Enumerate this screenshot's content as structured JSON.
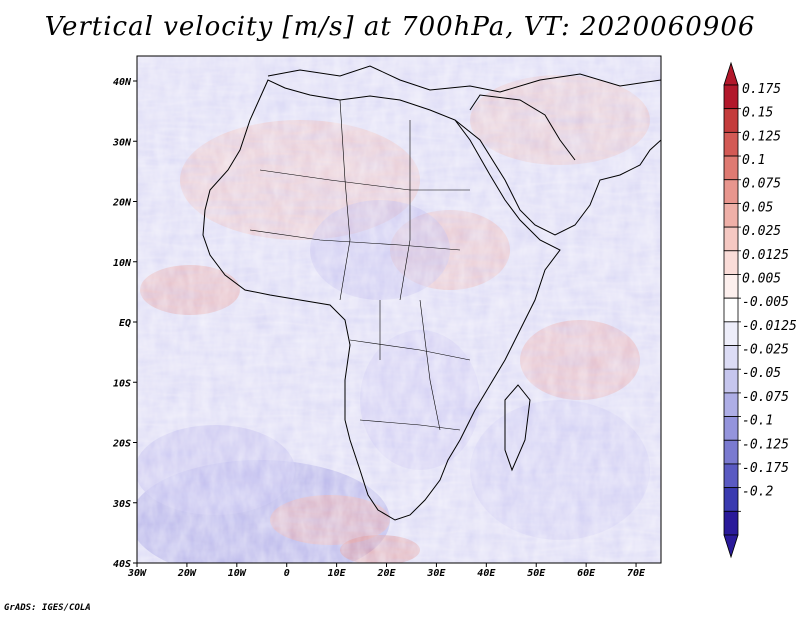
{
  "title": "Vertical velocity [m/s] at 700hPa, VT: 2020060906",
  "credit": "GrADS: IGES/COLA",
  "map": {
    "lon_range": [
      -30,
      75
    ],
    "lat_range": [
      -40,
      45
    ],
    "lon_ticks": [
      "30W",
      "20W",
      "10W",
      "0",
      "10E",
      "20E",
      "30E",
      "40E",
      "50E",
      "60E",
      "70E"
    ],
    "lat_ticks": [
      "40N",
      "30N",
      "20N",
      "10N",
      "EQ",
      "10S",
      "20S",
      "30S",
      "40S"
    ]
  },
  "colorbar": {
    "labels": [
      "0.175",
      "0.15",
      "0.125",
      "0.1",
      "0.075",
      "0.05",
      "0.025",
      "0.0125",
      "0.005",
      "-0.005",
      "-0.0125",
      "-0.025",
      "-0.05",
      "-0.075",
      "-0.1",
      "-0.125",
      "-0.175",
      "-0.2"
    ],
    "colors": [
      "#b2182b",
      "#c43c3c",
      "#d35a55",
      "#df7a72",
      "#e8968e",
      "#efb0a8",
      "#f5c8c2",
      "#fadcd8",
      "#fdf0ee",
      "#ffffff",
      "#eeeefa",
      "#dcdcf5",
      "#c6c6ee",
      "#aeaee6",
      "#9494dc",
      "#7a7ad0",
      "#5a5ac2",
      "#3a3ab0",
      "#2a1a9a"
    ]
  }
}
